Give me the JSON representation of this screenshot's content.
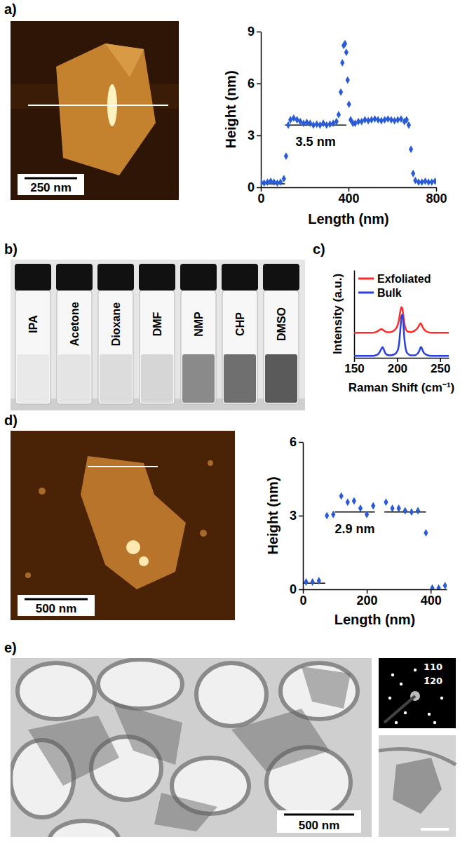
{
  "chart_data": [
    {
      "type": "scatter",
      "marker": "diamond",
      "color": "#2a5bd7",
      "x": [
        0,
        15,
        30,
        45,
        60,
        75,
        90,
        105,
        115,
        125,
        135,
        150,
        165,
        180,
        195,
        210,
        225,
        240,
        255,
        270,
        285,
        300,
        315,
        330,
        345,
        355,
        365,
        372,
        378,
        384,
        390,
        396,
        402,
        410,
        420,
        430,
        445,
        460,
        475,
        490,
        505,
        520,
        535,
        550,
        565,
        580,
        595,
        610,
        625,
        640,
        655,
        665,
        675,
        685,
        695,
        705,
        720,
        735,
        750,
        765,
        780,
        795
      ],
      "values": [
        0.3,
        0.25,
        0.3,
        0.35,
        0.3,
        0.25,
        0.3,
        0.5,
        1.8,
        3.6,
        3.9,
        4.0,
        3.9,
        3.8,
        3.7,
        3.75,
        3.7,
        3.6,
        3.65,
        3.6,
        3.7,
        3.6,
        3.65,
        3.7,
        3.8,
        4.2,
        5.5,
        7.2,
        8.2,
        8.3,
        7.8,
        6.2,
        4.8,
        3.9,
        3.7,
        3.7,
        3.8,
        3.8,
        3.9,
        3.85,
        3.9,
        3.95,
        3.9,
        3.85,
        3.9,
        3.95,
        3.9,
        3.85,
        3.9,
        3.95,
        3.8,
        3.9,
        3.6,
        2.2,
        0.8,
        0.4,
        0.3,
        0.3,
        0.35,
        0.3,
        0.3,
        0.35
      ],
      "xlim": [
        0,
        800
      ],
      "xticks": [
        0,
        400,
        800
      ],
      "ylim": [
        0,
        9
      ],
      "yticks": [
        0,
        3,
        6,
        9
      ],
      "x_label": "Length (nm)",
      "y_label": "Height (nm)",
      "reference_lines": [
        {
          "x": [
            0,
            110
          ],
          "y": 0.2
        },
        {
          "x": [
            110,
            390
          ],
          "y": 3.6
        }
      ],
      "annotations": [
        {
          "text": "3.5 nm"
        }
      ]
    },
    {
      "type": "line",
      "x": [
        150,
        160,
        170,
        175,
        178,
        180,
        182,
        183,
        184,
        186,
        188,
        192,
        196,
        200,
        202,
        204,
        205,
        206,
        207,
        208,
        210,
        212,
        216,
        220,
        224,
        226,
        227,
        228,
        229,
        231,
        234,
        240,
        250,
        260
      ],
      "series": [
        {
          "name": "Exfoliated",
          "color": "#ff2a2a",
          "values": [
            0.4,
            0.4,
            0.4,
            0.41,
            0.43,
            0.45,
            0.46,
            0.45,
            0.44,
            0.42,
            0.41,
            0.41,
            0.43,
            0.5,
            0.6,
            0.76,
            0.81,
            0.79,
            0.7,
            0.58,
            0.46,
            0.42,
            0.41,
            0.43,
            0.48,
            0.53,
            0.55,
            0.54,
            0.51,
            0.46,
            0.42,
            0.4,
            0.4,
            0.4
          ]
        },
        {
          "name": "Bulk",
          "color": "#2a3fe0",
          "values": [
            0.03,
            0.03,
            0.03,
            0.04,
            0.06,
            0.1,
            0.15,
            0.17,
            0.15,
            0.08,
            0.05,
            0.04,
            0.05,
            0.1,
            0.2,
            0.5,
            0.66,
            0.69,
            0.6,
            0.38,
            0.14,
            0.07,
            0.04,
            0.04,
            0.07,
            0.12,
            0.16,
            0.17,
            0.14,
            0.08,
            0.05,
            0.03,
            0.03,
            0.03
          ]
        }
      ],
      "xlim": [
        150,
        260
      ],
      "xticks": [
        150,
        200,
        250
      ],
      "ylim": [
        0,
        1.4
      ],
      "yticks": [],
      "tick_labels": "x",
      "x_label": "Raman Shift (cm⁻¹)",
      "y_label": "Intensity (a.u.)",
      "legend": "upper left"
    },
    {
      "type": "scatter",
      "marker": "diamond",
      "color": "#2a5bd7",
      "x": [
        10,
        30,
        50,
        75,
        95,
        120,
        140,
        160,
        180,
        200,
        220,
        260,
        280,
        300,
        320,
        340,
        360,
        385,
        405,
        425,
        445
      ],
      "values": [
        0.3,
        0.3,
        0.35,
        3.0,
        3.05,
        3.8,
        3.55,
        3.6,
        3.3,
        3.05,
        3.4,
        3.55,
        3.3,
        3.3,
        3.2,
        3.15,
        3.2,
        2.3,
        0.05,
        0.05,
        0.15
      ],
      "xlim": [
        0,
        450
      ],
      "xticks": [
        0,
        200,
        400
      ],
      "ylim": [
        0,
        6
      ],
      "yticks": [
        0,
        3,
        6
      ],
      "x_label": "Length (nm)",
      "y_label": "Height (nm)",
      "reference_lines": [
        {
          "x": [
            0,
            70
          ],
          "y": 0.25
        },
        {
          "x": [
            100,
            225
          ],
          "y": 3.15
        },
        {
          "x": [
            255,
            385
          ],
          "y": 3.15
        }
      ],
      "annotations": [
        {
          "text": "2.9 nm"
        }
      ]
    }
  ],
  "figure": {
    "panel_letters": [
      "a)",
      "b)",
      "c)",
      "d)",
      "e)"
    ],
    "afm_scale_bars": [
      "250 nm",
      "500 nm"
    ],
    "vial_labels": [
      "IPA",
      "Acetone",
      "Dioxane",
      "DMF",
      "NMP",
      "CHP",
      "DMSO"
    ],
    "tem_scale_bar": "500 nm",
    "saed_labels": [
      "110",
      "1̄20"
    ]
  }
}
